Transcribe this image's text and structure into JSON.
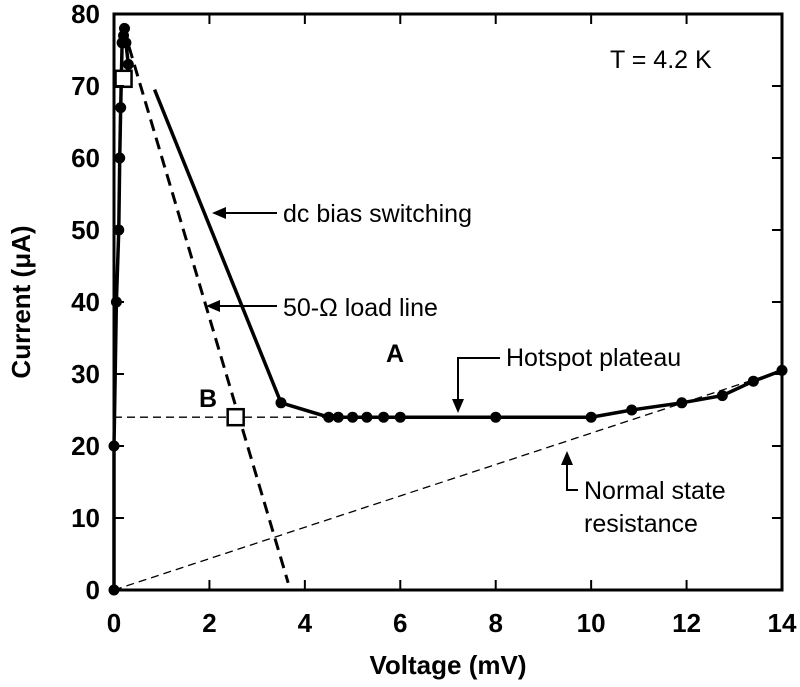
{
  "chart_data": {
    "type": "scatter",
    "xlabel": "Voltage (mV)",
    "ylabel": "Current (μA)",
    "xlim": [
      0,
      14
    ],
    "ylim": [
      0,
      80
    ],
    "x_ticks": [
      0,
      2,
      4,
      6,
      8,
      10,
      12,
      14
    ],
    "y_ticks": [
      0,
      10,
      20,
      30,
      40,
      50,
      60,
      70,
      80
    ],
    "grid": false,
    "annotations": {
      "temperature": "T = 4.2 K",
      "dc_bias": "dc bias switching",
      "load_line": "50-Ω load line",
      "label_a": "A",
      "label_b": "B",
      "hotspot": "Hotspot plateau",
      "normal_state_1": "Normal state",
      "normal_state_2": "resistance"
    },
    "series": [
      {
        "style": "solid-line-with-points",
        "points": [
          [
            0,
            0
          ],
          [
            0,
            20
          ],
          [
            0.05,
            40
          ],
          [
            0.1,
            50
          ],
          [
            0.12,
            60
          ],
          [
            0.14,
            67
          ],
          [
            0.17,
            76
          ],
          [
            0.2,
            77
          ],
          [
            0.22,
            78
          ],
          [
            0.25,
            76
          ],
          [
            0.3,
            73
          ]
        ]
      },
      {
        "style": "solid-line",
        "points": [
          [
            0.85,
            69.5
          ],
          [
            3.5,
            26
          ]
        ]
      },
      {
        "style": "solid-line-with-points",
        "points": [
          [
            3.5,
            26
          ],
          [
            4.5,
            24
          ],
          [
            4.7,
            24
          ],
          [
            5.0,
            24
          ],
          [
            5.3,
            24
          ],
          [
            5.65,
            24
          ],
          [
            6.0,
            24
          ],
          [
            8.0,
            24
          ],
          [
            10.0,
            24
          ],
          [
            10.85,
            25
          ],
          [
            11.9,
            26
          ],
          [
            12.75,
            27
          ],
          [
            13.4,
            29
          ],
          [
            14,
            30.5
          ]
        ]
      },
      {
        "style": "dashed-line",
        "points": [
          [
            0.2,
            78
          ],
          [
            3.65,
            1
          ]
        ]
      },
      {
        "style": "thin-dashed-line",
        "points": [
          [
            0,
            24
          ],
          [
            4.5,
            24
          ]
        ]
      },
      {
        "style": "thin-dashed-line",
        "points": [
          [
            0,
            0
          ],
          [
            14,
            30.5
          ]
        ]
      },
      {
        "style": "open-square",
        "points": [
          [
            0.2,
            71
          ],
          [
            2.55,
            24
          ]
        ]
      }
    ]
  }
}
